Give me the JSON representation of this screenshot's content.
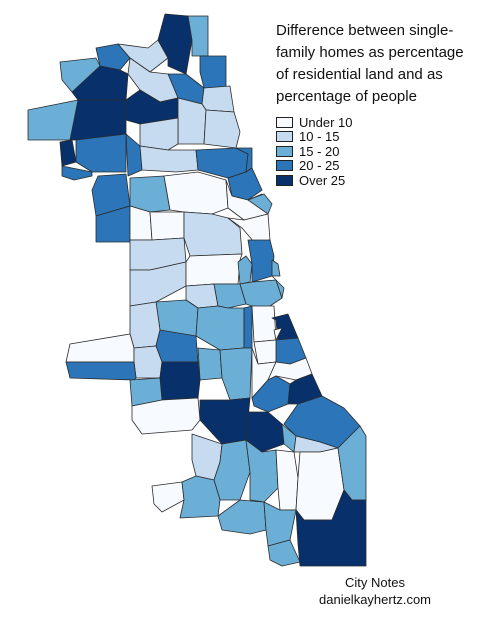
{
  "title_lines": [
    "Difference between single-",
    "family homes as percentage",
    "of residential land and as",
    "percentage of people"
  ],
  "legend": [
    {
      "label": "Under 10",
      "color": "#f7fbff"
    },
    {
      "label": "10 - 15",
      "color": "#c6dbef"
    },
    {
      "label": "15 - 20",
      "color": "#6baed6"
    },
    {
      "label": "20 - 25",
      "color": "#2b75b8"
    },
    {
      "label": "Over 25",
      "color": "#08306b"
    }
  ],
  "credit": {
    "line1": "City Notes",
    "line2": "danielkayhertz.com"
  },
  "map": {
    "region": "Chicago community areas",
    "color_classes": [
      "#f7fbff",
      "#c6dbef",
      "#6baed6",
      "#2b75b8",
      "#08306b"
    ]
  }
}
